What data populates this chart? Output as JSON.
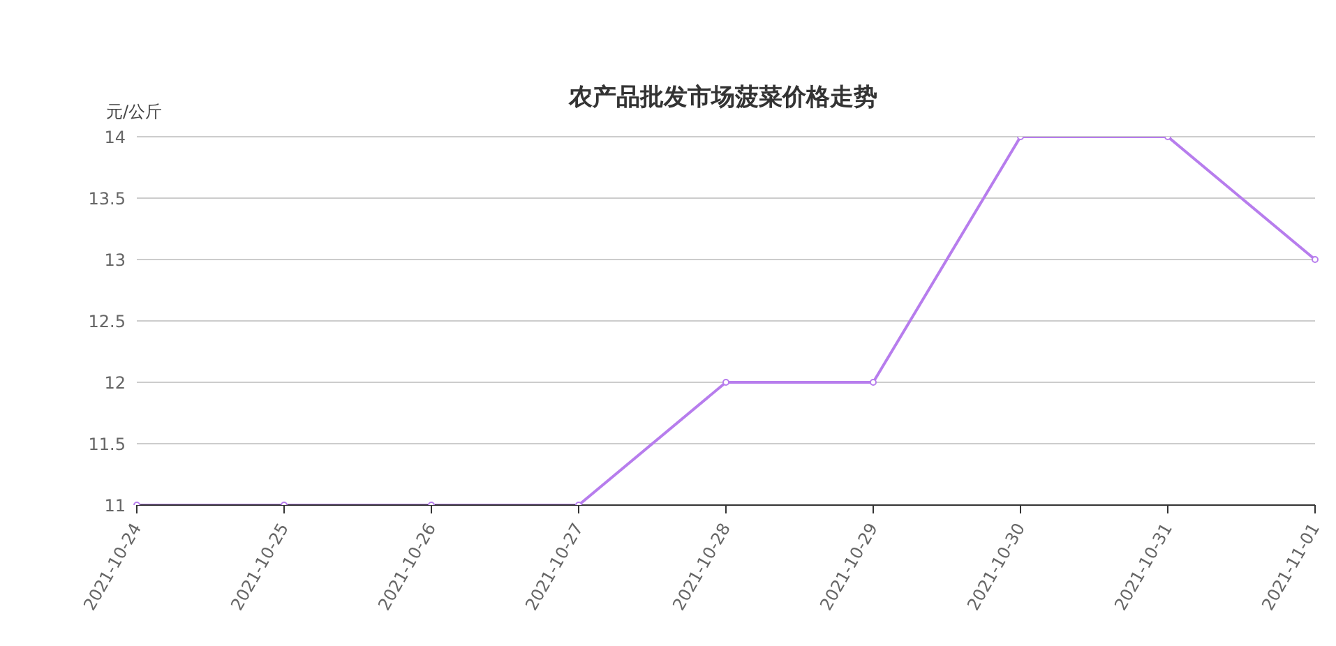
{
  "chart_data": {
    "type": "line",
    "title": "农产品批发市场菠菜价格走势",
    "ylabel": "元/公斤",
    "categories": [
      "2021-10-24",
      "2021-10-25",
      "2021-10-26",
      "2021-10-27",
      "2021-10-28",
      "2021-10-29",
      "2021-10-30",
      "2021-10-31",
      "2021-11-01"
    ],
    "series": [
      {
        "color": "#b77ded",
        "values": [
          11,
          11,
          11,
          11,
          12,
          12,
          14,
          14,
          13
        ]
      }
    ],
    "ylim": [
      11,
      14
    ],
    "yticks": [
      11,
      11.5,
      12,
      12.5,
      13,
      13.5,
      14
    ],
    "grid": "y",
    "legend": false,
    "marker": "circle",
    "line_style": "solid"
  }
}
